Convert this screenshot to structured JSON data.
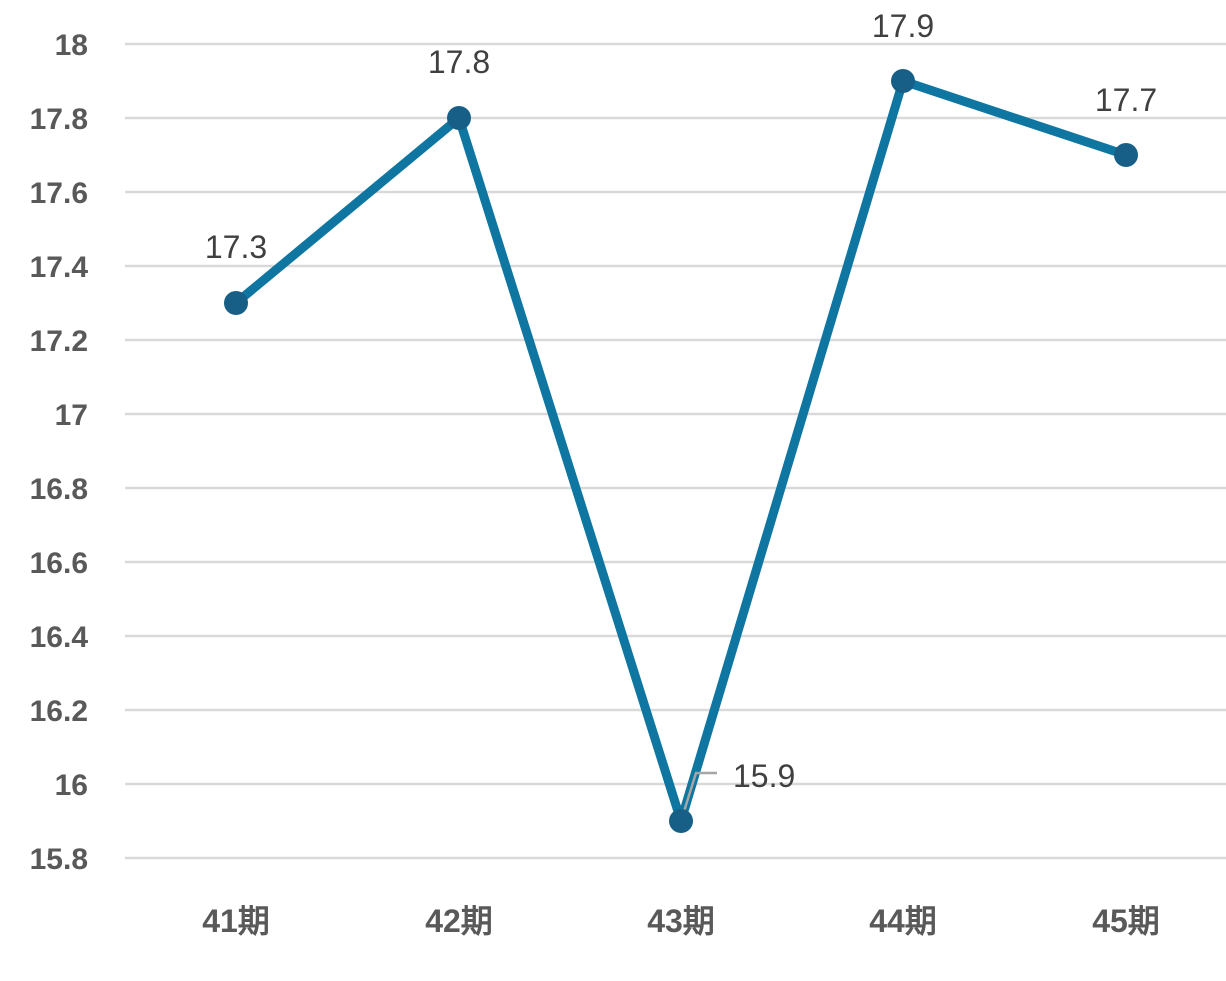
{
  "chart_data": {
    "type": "line",
    "categories": [
      "41期",
      "42期",
      "43期",
      "44期",
      "45期"
    ],
    "series": [
      {
        "values": [
          17.3,
          17.8,
          15.9,
          17.9,
          17.7
        ]
      }
    ],
    "data_labels": [
      "17.3",
      "17.8",
      "15.9",
      "17.9",
      "17.7"
    ],
    "yticks": [
      "15.8",
      "16",
      "16.2",
      "16.4",
      "16.6",
      "16.8",
      "17",
      "17.2",
      "17.4",
      "17.6",
      "17.8",
      "18"
    ],
    "ylim": [
      15.8,
      18
    ],
    "grid": true,
    "legend": "none",
    "colors": {
      "line": "#0E76A0",
      "marker": "#175F86",
      "grid": "#D9D9D9",
      "leader": "#A6A6A6"
    }
  }
}
